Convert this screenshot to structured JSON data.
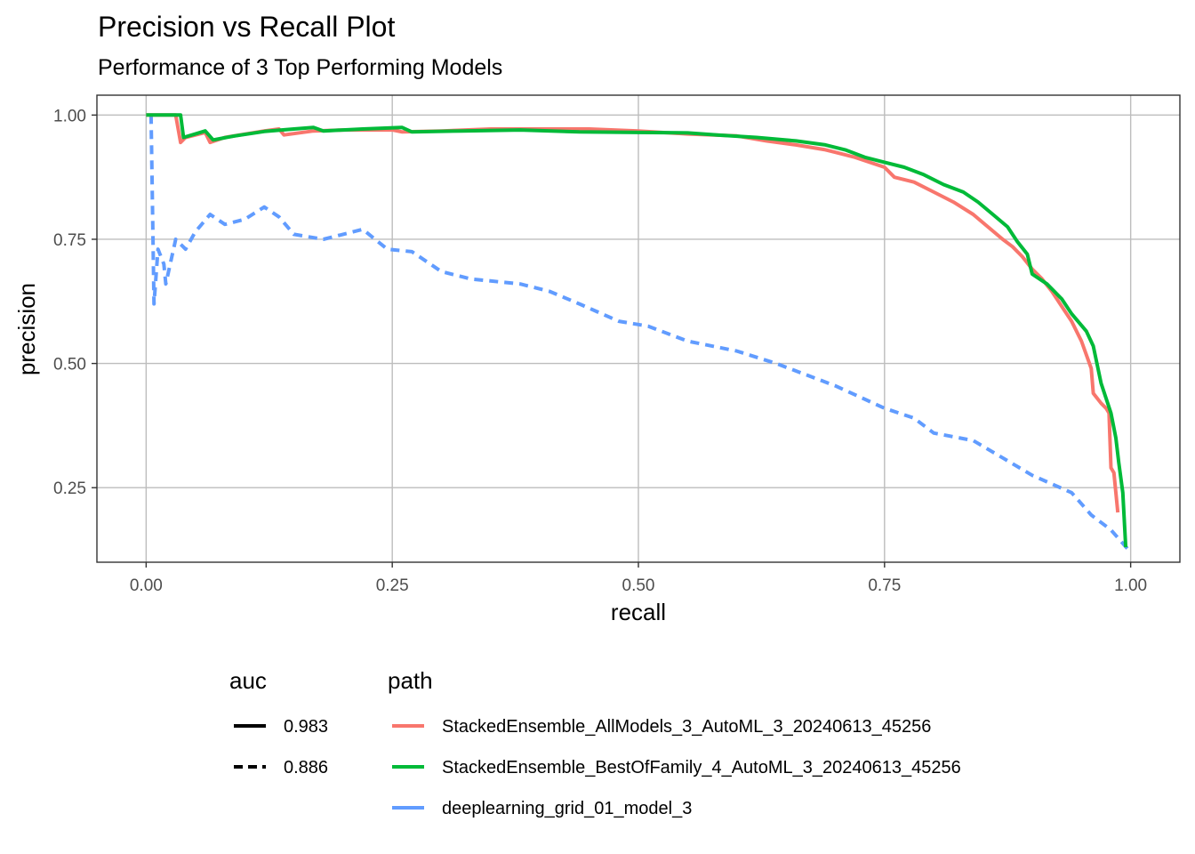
{
  "chart_data": {
    "type": "line",
    "title": "Precision vs Recall Plot",
    "subtitle": "Performance of 3 Top Performing Models",
    "xlabel": "recall",
    "ylabel": "precision",
    "xlim": [
      -0.05,
      1.05
    ],
    "ylim": [
      0.1,
      1.04
    ],
    "x_ticks": [
      0,
      0.25,
      0.5,
      0.75,
      1
    ],
    "x_tick_labels": [
      "0.00",
      "0.25",
      "0.50",
      "0.75",
      "1.00"
    ],
    "y_ticks": [
      0.25,
      0.5,
      0.75,
      1
    ],
    "y_tick_labels": [
      "0.25",
      "0.50",
      "0.75",
      "1.00"
    ],
    "grid": true,
    "legend_position": "bottom",
    "legend": {
      "auc": {
        "title": "auc",
        "entries": [
          {
            "label": "0.983",
            "linetype": "solid"
          },
          {
            "label": "0.886",
            "linetype": "dashed"
          }
        ]
      },
      "path": {
        "title": "path",
        "entries": [
          {
            "label": "StackedEnsemble_AllModels_3_AutoML_3_20240613_45256",
            "color": "#F8766D"
          },
          {
            "label": "StackedEnsemble_BestOfFamily_4_AutoML_3_20240613_45256",
            "color": "#00BA38"
          },
          {
            "label": "deeplearning_grid_01_model_3",
            "color": "#619CFF"
          }
        ]
      }
    },
    "series": [
      {
        "name": "StackedEnsemble_AllModels_3_AutoML_3_20240613_45256",
        "auc": "0.983",
        "color": "#F8766D",
        "linetype": "solid",
        "points": [
          [
            0,
            1.0
          ],
          [
            0.03,
            1.0
          ],
          [
            0.035,
            0.945
          ],
          [
            0.04,
            0.955
          ],
          [
            0.06,
            0.965
          ],
          [
            0.065,
            0.945
          ],
          [
            0.08,
            0.955
          ],
          [
            0.12,
            0.968
          ],
          [
            0.135,
            0.972
          ],
          [
            0.14,
            0.96
          ],
          [
            0.17,
            0.968
          ],
          [
            0.2,
            0.97
          ],
          [
            0.25,
            0.97
          ],
          [
            0.26,
            0.966
          ],
          [
            0.3,
            0.968
          ],
          [
            0.35,
            0.972
          ],
          [
            0.4,
            0.972
          ],
          [
            0.45,
            0.972
          ],
          [
            0.5,
            0.968
          ],
          [
            0.55,
            0.962
          ],
          [
            0.6,
            0.958
          ],
          [
            0.63,
            0.948
          ],
          [
            0.66,
            0.94
          ],
          [
            0.69,
            0.93
          ],
          [
            0.7,
            0.925
          ],
          [
            0.72,
            0.915
          ],
          [
            0.75,
            0.895
          ],
          [
            0.76,
            0.875
          ],
          [
            0.78,
            0.865
          ],
          [
            0.8,
            0.845
          ],
          [
            0.82,
            0.825
          ],
          [
            0.84,
            0.8
          ],
          [
            0.855,
            0.775
          ],
          [
            0.87,
            0.75
          ],
          [
            0.88,
            0.735
          ],
          [
            0.89,
            0.715
          ],
          [
            0.9,
            0.69
          ],
          [
            0.91,
            0.67
          ],
          [
            0.92,
            0.645
          ],
          [
            0.93,
            0.615
          ],
          [
            0.94,
            0.585
          ],
          [
            0.95,
            0.545
          ],
          [
            0.96,
            0.49
          ],
          [
            0.962,
            0.44
          ],
          [
            0.97,
            0.42
          ],
          [
            0.975,
            0.41
          ],
          [
            0.978,
            0.4
          ],
          [
            0.98,
            0.29
          ],
          [
            0.983,
            0.28
          ],
          [
            0.985,
            0.24
          ],
          [
            0.987,
            0.2
          ]
        ]
      },
      {
        "name": "StackedEnsemble_BestOfFamily_4_AutoML_3_20240613_45256",
        "auc": "0.983",
        "color": "#00BA38",
        "linetype": "solid",
        "points": [
          [
            0,
            1.0
          ],
          [
            0.035,
            1.0
          ],
          [
            0.038,
            0.955
          ],
          [
            0.05,
            0.962
          ],
          [
            0.06,
            0.968
          ],
          [
            0.068,
            0.95
          ],
          [
            0.09,
            0.958
          ],
          [
            0.12,
            0.967
          ],
          [
            0.15,
            0.972
          ],
          [
            0.17,
            0.975
          ],
          [
            0.18,
            0.968
          ],
          [
            0.22,
            0.972
          ],
          [
            0.26,
            0.975
          ],
          [
            0.27,
            0.966
          ],
          [
            0.32,
            0.968
          ],
          [
            0.38,
            0.97
          ],
          [
            0.44,
            0.966
          ],
          [
            0.5,
            0.965
          ],
          [
            0.55,
            0.964
          ],
          [
            0.58,
            0.96
          ],
          [
            0.62,
            0.955
          ],
          [
            0.66,
            0.948
          ],
          [
            0.69,
            0.94
          ],
          [
            0.71,
            0.93
          ],
          [
            0.73,
            0.915
          ],
          [
            0.75,
            0.905
          ],
          [
            0.77,
            0.895
          ],
          [
            0.79,
            0.88
          ],
          [
            0.81,
            0.86
          ],
          [
            0.83,
            0.845
          ],
          [
            0.845,
            0.825
          ],
          [
            0.86,
            0.8
          ],
          [
            0.875,
            0.775
          ],
          [
            0.885,
            0.745
          ],
          [
            0.895,
            0.72
          ],
          [
            0.9,
            0.68
          ],
          [
            0.915,
            0.66
          ],
          [
            0.93,
            0.63
          ],
          [
            0.94,
            0.6
          ],
          [
            0.955,
            0.565
          ],
          [
            0.962,
            0.535
          ],
          [
            0.97,
            0.46
          ],
          [
            0.98,
            0.4
          ],
          [
            0.985,
            0.35
          ],
          [
            0.988,
            0.3
          ],
          [
            0.992,
            0.24
          ],
          [
            0.995,
            0.13
          ]
        ]
      },
      {
        "name": "deeplearning_grid_01_model_3",
        "auc": "0.886",
        "color": "#619CFF",
        "linetype": "dashed",
        "points": [
          [
            0.005,
            1.0
          ],
          [
            0.008,
            0.62
          ],
          [
            0.012,
            0.73
          ],
          [
            0.018,
            0.7
          ],
          [
            0.02,
            0.66
          ],
          [
            0.03,
            0.75
          ],
          [
            0.04,
            0.73
          ],
          [
            0.05,
            0.765
          ],
          [
            0.065,
            0.8
          ],
          [
            0.08,
            0.78
          ],
          [
            0.1,
            0.79
          ],
          [
            0.12,
            0.815
          ],
          [
            0.135,
            0.795
          ],
          [
            0.15,
            0.76
          ],
          [
            0.18,
            0.75
          ],
          [
            0.22,
            0.77
          ],
          [
            0.245,
            0.73
          ],
          [
            0.27,
            0.725
          ],
          [
            0.3,
            0.685
          ],
          [
            0.33,
            0.67
          ],
          [
            0.38,
            0.66
          ],
          [
            0.41,
            0.645
          ],
          [
            0.44,
            0.62
          ],
          [
            0.48,
            0.585
          ],
          [
            0.51,
            0.575
          ],
          [
            0.55,
            0.545
          ],
          [
            0.6,
            0.525
          ],
          [
            0.64,
            0.5
          ],
          [
            0.7,
            0.455
          ],
          [
            0.75,
            0.41
          ],
          [
            0.78,
            0.39
          ],
          [
            0.8,
            0.36
          ],
          [
            0.84,
            0.345
          ],
          [
            0.87,
            0.31
          ],
          [
            0.9,
            0.275
          ],
          [
            0.94,
            0.24
          ],
          [
            0.96,
            0.195
          ],
          [
            0.98,
            0.165
          ],
          [
            1.0,
            0.12
          ]
        ]
      }
    ]
  }
}
